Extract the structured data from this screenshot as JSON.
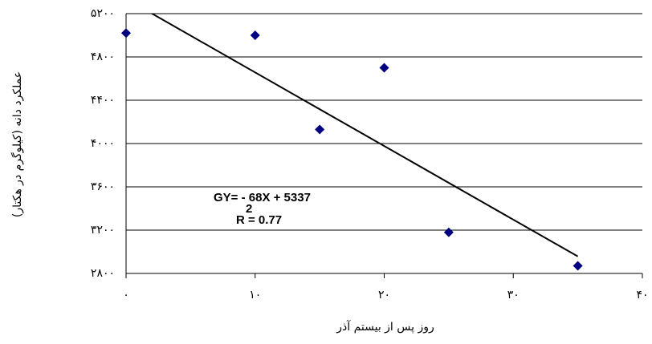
{
  "chart_data": {
    "type": "scatter",
    "x_label": "روز پس از بیستم آذر",
    "y_label": "عملکرد دانه (کیلوگرم در هکتار)",
    "x": [
      0,
      10,
      15,
      20,
      25,
      35
    ],
    "series": [
      {
        "color": "#000080",
        "values": [
          5020,
          5000,
          4130,
          4700,
          3180,
          2870
        ]
      }
    ],
    "xlim": [
      0,
      40
    ],
    "xticks": [
      {
        "value": 0,
        "label": "۰"
      },
      {
        "value": 10,
        "label": "۱۰"
      },
      {
        "value": 20,
        "label": "۲۰"
      },
      {
        "value": 30,
        "label": "۳۰"
      },
      {
        "value": 40,
        "label": "۴۰"
      }
    ],
    "ylim": [
      2800,
      5200
    ],
    "yticks": [
      {
        "value": 2800,
        "label": "۲۸۰۰"
      },
      {
        "value": 3200,
        "label": "۳۲۰۰"
      },
      {
        "value": 3600,
        "label": "۳۶۰۰"
      },
      {
        "value": 4000,
        "label": "۴۰۰۰"
      },
      {
        "value": 4400,
        "label": "۴۴۰۰"
      },
      {
        "value": 4800,
        "label": "۴۸۰۰"
      },
      {
        "value": 5200,
        "label": "۵۲۰۰"
      }
    ],
    "grid": true,
    "trendline": {
      "slope": -68,
      "intercept": 5337,
      "x": [
        0,
        35
      ],
      "color": "#000000"
    },
    "annotations": [
      "GY= - 68X + 5337",
      "2",
      "R = 0.77"
    ]
  }
}
